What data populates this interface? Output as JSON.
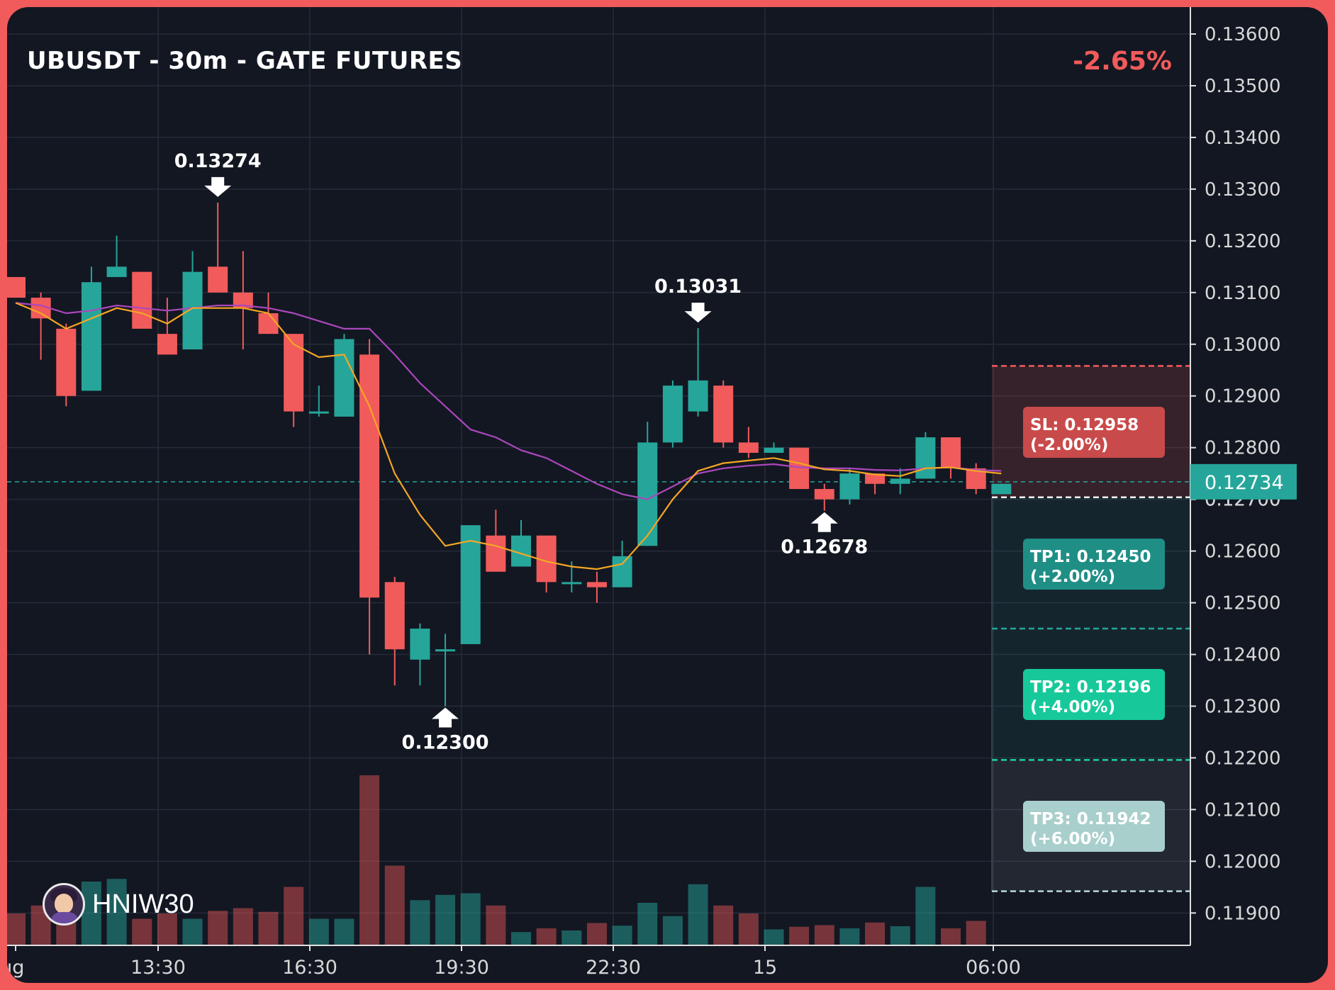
{
  "header": {
    "title": "UBUSDT - 30m - GATE FUTURES",
    "change": "-2.65%"
  },
  "brand": {
    "name": "HNIW30",
    "avatar_icon": "avatar-icon"
  },
  "colors": {
    "background": "#131722",
    "frame": "#f15b5b",
    "up": "#26a69a",
    "down": "#f15b5b",
    "ema_fast": "#f5a623",
    "ema_slow": "#ab47bc",
    "grid": "#262b38",
    "axis_text": "#d8d8d8"
  },
  "chart_data": {
    "type": "candlestick",
    "symbol": "UBUSDT",
    "interval": "30m",
    "exchange": "GATE FUTURES",
    "grid": true,
    "x_ticks": [
      "ıg",
      "13:30",
      "16:30",
      "19:30",
      "22:30",
      "15",
      "06:00"
    ],
    "y_ticks": [
      "0.13600",
      "0.13500",
      "0.13400",
      "0.13300",
      "0.13200",
      "0.13100",
      "0.13000",
      "0.12900",
      "0.12800",
      "0.12700",
      "0.12600",
      "0.12500",
      "0.12400",
      "0.12300",
      "0.12200",
      "0.12100",
      "0.12000",
      "0.11900"
    ],
    "ylim": [
      0.1185,
      0.1365
    ],
    "candles": [
      {
        "o": 0.1313,
        "h": 0.1313,
        "l": 0.1309,
        "c": 0.1309
      },
      {
        "o": 0.1309,
        "h": 0.131,
        "l": 0.1297,
        "c": 0.1305
      },
      {
        "o": 0.1303,
        "h": 0.1304,
        "l": 0.1288,
        "c": 0.129
      },
      {
        "o": 0.1291,
        "h": 0.1315,
        "l": 0.1291,
        "c": 0.1312
      },
      {
        "o": 0.1313,
        "h": 0.1321,
        "l": 0.1313,
        "c": 0.1315
      },
      {
        "o": 0.1314,
        "h": 0.1314,
        "l": 0.1303,
        "c": 0.1303
      },
      {
        "o": 0.1302,
        "h": 0.1309,
        "l": 0.1298,
        "c": 0.1298
      },
      {
        "o": 0.1299,
        "h": 0.1318,
        "l": 0.1299,
        "c": 0.1314
      },
      {
        "o": 0.1315,
        "h": 0.13274,
        "l": 0.131,
        "c": 0.131
      },
      {
        "o": 0.131,
        "h": 0.1318,
        "l": 0.1299,
        "c": 0.1307
      },
      {
        "o": 0.1306,
        "h": 0.131,
        "l": 0.1302,
        "c": 0.1302
      },
      {
        "o": 0.1302,
        "h": 0.1302,
        "l": 0.1284,
        "c": 0.1287
      },
      {
        "o": 0.1287,
        "h": 0.1292,
        "l": 0.1286,
        "c": 0.1287
      },
      {
        "o": 0.1286,
        "h": 0.1302,
        "l": 0.1286,
        "c": 0.1301
      },
      {
        "o": 0.1298,
        "h": 0.1301,
        "l": 0.124,
        "c": 0.1251
      },
      {
        "o": 0.1254,
        "h": 0.1255,
        "l": 0.1234,
        "c": 0.1241
      },
      {
        "o": 0.1239,
        "h": 0.1246,
        "l": 0.1234,
        "c": 0.1245
      },
      {
        "o": 0.1241,
        "h": 0.1244,
        "l": 0.123,
        "c": 0.1241
      },
      {
        "o": 0.1242,
        "h": 0.1265,
        "l": 0.1242,
        "c": 0.1265
      },
      {
        "o": 0.1263,
        "h": 0.1268,
        "l": 0.1256,
        "c": 0.1256
      },
      {
        "o": 0.1257,
        "h": 0.1266,
        "l": 0.1257,
        "c": 0.1263
      },
      {
        "o": 0.1263,
        "h": 0.1263,
        "l": 0.1252,
        "c": 0.1254
      },
      {
        "o": 0.1254,
        "h": 0.1258,
        "l": 0.1252,
        "c": 0.1254
      },
      {
        "o": 0.1254,
        "h": 0.1256,
        "l": 0.125,
        "c": 0.1253
      },
      {
        "o": 0.1253,
        "h": 0.1262,
        "l": 0.1253,
        "c": 0.1259
      },
      {
        "o": 0.1261,
        "h": 0.1285,
        "l": 0.1261,
        "c": 0.1281
      },
      {
        "o": 0.1281,
        "h": 0.1293,
        "l": 0.128,
        "c": 0.1292
      },
      {
        "o": 0.1287,
        "h": 0.13031,
        "l": 0.1286,
        "c": 0.1293
      },
      {
        "o": 0.1292,
        "h": 0.1293,
        "l": 0.128,
        "c": 0.1281
      },
      {
        "o": 0.1281,
        "h": 0.1284,
        "l": 0.1278,
        "c": 0.1279
      },
      {
        "o": 0.1279,
        "h": 0.1281,
        "l": 0.1279,
        "c": 0.128
      },
      {
        "o": 0.128,
        "h": 0.128,
        "l": 0.1272,
        "c": 0.1272
      },
      {
        "o": 0.1272,
        "h": 0.1273,
        "l": 0.12678,
        "c": 0.127
      },
      {
        "o": 0.127,
        "h": 0.1276,
        "l": 0.1269,
        "c": 0.1275
      },
      {
        "o": 0.1275,
        "h": 0.1275,
        "l": 0.1271,
        "c": 0.1273
      },
      {
        "o": 0.1273,
        "h": 0.1276,
        "l": 0.1271,
        "c": 0.1274
      },
      {
        "o": 0.1274,
        "h": 0.1283,
        "l": 0.1274,
        "c": 0.1282
      },
      {
        "o": 0.1282,
        "h": 0.1282,
        "l": 0.1274,
        "c": 0.1276
      },
      {
        "o": 0.1276,
        "h": 0.1277,
        "l": 0.1271,
        "c": 0.1272
      },
      {
        "o": 0.1271,
        "h": 0.1273,
        "l": 0.1271,
        "c": 0.1273
      }
    ],
    "volumes": [
      6,
      7.5,
      5,
      12,
      12.5,
      5,
      6,
      5,
      6.5,
      7,
      6.3,
      11,
      5,
      5,
      32,
      15,
      8.5,
      9.5,
      9.8,
      7.5,
      2.5,
      3.2,
      2.8,
      4.2,
      3.7,
      8,
      5.5,
      11.5,
      7.5,
      6,
      3,
      3.5,
      3.8,
      3.2,
      4.3,
      3.6,
      11,
      3.2,
      4.6,
      0
    ],
    "ema_fast": [
      0.1308,
      0.1306,
      0.1303,
      0.1305,
      0.1307,
      0.1306,
      0.1304,
      0.1307,
      0.1307,
      0.1307,
      0.1306,
      0.13,
      0.12975,
      0.1298,
      0.1288,
      0.1275,
      0.1267,
      0.1261,
      0.1262,
      0.1261,
      0.12595,
      0.1258,
      0.1257,
      0.12565,
      0.12575,
      0.1263,
      0.127,
      0.12755,
      0.1277,
      0.12775,
      0.1278,
      0.1277,
      0.12758,
      0.12755,
      0.12748,
      0.12745,
      0.1276,
      0.12762,
      0.12755,
      0.1275
    ],
    "ema_slow": [
      0.1308,
      0.13075,
      0.1306,
      0.13065,
      0.13075,
      0.1307,
      0.13065,
      0.1307,
      0.13075,
      0.13075,
      0.1307,
      0.1306,
      0.13045,
      0.1303,
      0.1303,
      0.1298,
      0.12925,
      0.1288,
      0.12835,
      0.1282,
      0.12795,
      0.1278,
      0.12755,
      0.1273,
      0.1271,
      0.127,
      0.12725,
      0.1275,
      0.1276,
      0.12765,
      0.12768,
      0.12762,
      0.1276,
      0.1276,
      0.12757,
      0.12756,
      0.1276,
      0.12762,
      0.12757,
      0.12755
    ],
    "current_price": "0.12734",
    "current_price_value": 0.12734,
    "hidden_tick": "0.12700",
    "annotations": [
      {
        "label": "0.13274",
        "value": 0.13274,
        "index": 8,
        "kind": "high"
      },
      {
        "label": "0.13031",
        "value": 0.13031,
        "index": 27,
        "kind": "high"
      },
      {
        "label": "0.12300",
        "value": 0.123,
        "index": 17,
        "kind": "low"
      },
      {
        "label": "0.12678",
        "value": 0.12678,
        "index": 32,
        "kind": "low"
      }
    ],
    "levels": {
      "entry": 0.12704,
      "sl": {
        "label": "SL: 0.12958",
        "pct": "(-2.00%)",
        "value": 0.12958
      },
      "tp1": {
        "label": "TP1: 0.12450",
        "pct": "(+2.00%)",
        "value": 0.1245
      },
      "tp2": {
        "label": "TP2: 0.12196",
        "pct": "(+4.00%)",
        "value": 0.12196
      },
      "tp3": {
        "label": "TP3: 0.11942",
        "pct": "(+6.00%)",
        "value": 0.11942
      }
    }
  }
}
